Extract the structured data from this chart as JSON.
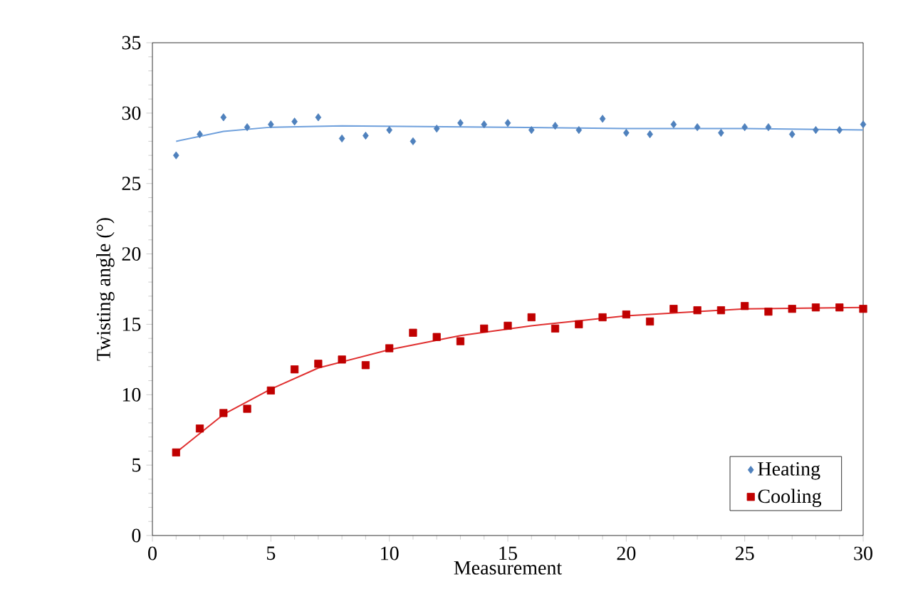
{
  "chart_data": {
    "type": "scatter",
    "xlabel": "Measurement",
    "ylabel": "Twisting angle (°)",
    "x": [
      1,
      2,
      3,
      4,
      5,
      6,
      7,
      8,
      9,
      10,
      11,
      12,
      13,
      14,
      15,
      16,
      17,
      18,
      19,
      20,
      21,
      22,
      23,
      24,
      25,
      26,
      27,
      28,
      29,
      30
    ],
    "xlim": [
      0,
      30
    ],
    "xticks": [
      0,
      5,
      10,
      15,
      20,
      25,
      30
    ],
    "ylim": [
      0,
      35
    ],
    "yticks": [
      0,
      5,
      10,
      15,
      20,
      25,
      30,
      35
    ],
    "grid": false,
    "legend": "bottom right",
    "series": [
      {
        "name": "Heating",
        "color": "#4f81bd",
        "marker": "diamond",
        "values": [
          27.0,
          28.5,
          29.7,
          29.0,
          29.2,
          29.4,
          29.7,
          28.2,
          28.4,
          28.8,
          28.0,
          28.9,
          29.3,
          29.2,
          29.3,
          28.8,
          29.1,
          28.8,
          29.6,
          28.6,
          28.5,
          29.2,
          29.0,
          28.6,
          29.0,
          29.0,
          28.5,
          28.8,
          28.8,
          29.2
        ]
      },
      {
        "name": "Cooling",
        "color": "#c00000",
        "marker": "square",
        "values": [
          5.9,
          7.6,
          8.7,
          9.0,
          10.3,
          11.8,
          12.2,
          12.5,
          12.1,
          13.3,
          14.4,
          14.1,
          13.8,
          14.7,
          14.9,
          15.5,
          14.7,
          15.0,
          15.5,
          15.7,
          15.2,
          16.1,
          16.0,
          16.0,
          16.3,
          15.9,
          16.1,
          16.2,
          16.2,
          16.1
        ]
      },
      {
        "type": "line",
        "color": "#6fa0dc",
        "marker": "none",
        "x": [
          1,
          3,
          5,
          8,
          15,
          20,
          25,
          30
        ],
        "values": [
          28.0,
          28.7,
          29.0,
          29.1,
          29.0,
          28.9,
          28.9,
          28.8
        ]
      },
      {
        "type": "line",
        "color": "#e03030",
        "marker": "none",
        "x": [
          1,
          3,
          5,
          7,
          10,
          13,
          16,
          20,
          25,
          30
        ],
        "values": [
          5.9,
          8.6,
          10.4,
          11.9,
          13.2,
          14.2,
          14.9,
          15.6,
          16.1,
          16.2
        ]
      }
    ]
  }
}
